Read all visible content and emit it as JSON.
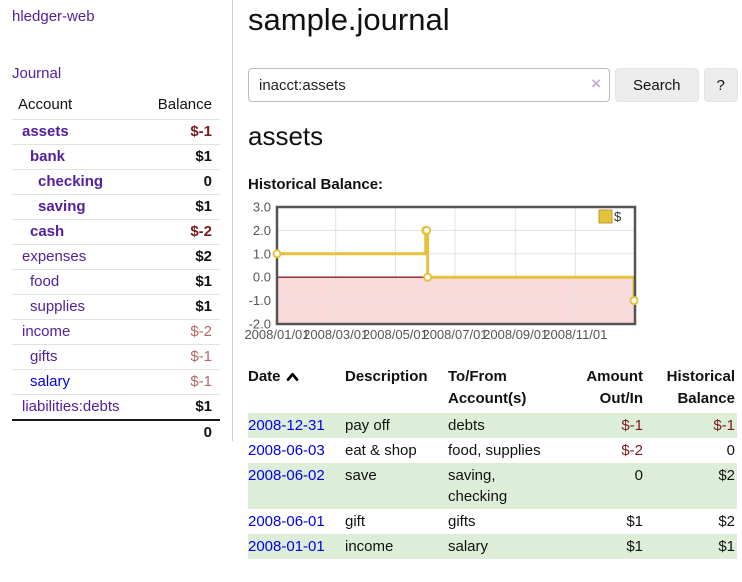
{
  "app": {
    "brand": "hledger-web"
  },
  "sidebar": {
    "journal_label": "Journal",
    "account_header": "Account",
    "balance_header": "Balance",
    "rows": [
      {
        "name": "assets",
        "indent": 0,
        "balance": "$-1",
        "bold": true,
        "neg": "strong"
      },
      {
        "name": "bank",
        "indent": 1,
        "balance": "$1",
        "bold": true
      },
      {
        "name": "checking",
        "indent": 2,
        "balance": "0",
        "bold": true
      },
      {
        "name": "saving",
        "indent": 2,
        "balance": "$1",
        "bold": true
      },
      {
        "name": "cash",
        "indent": 1,
        "balance": "$-2",
        "bold": true,
        "neg": "strong"
      },
      {
        "name": "expenses",
        "indent": 0,
        "balance": "$2"
      },
      {
        "name": "food",
        "indent": 1,
        "balance": "$1"
      },
      {
        "name": "supplies",
        "indent": 1,
        "balance": "$1"
      },
      {
        "name": "income",
        "indent": 0,
        "balance": "$-2",
        "neg": "soft"
      },
      {
        "name": "gifts",
        "indent": 1,
        "balance": "$-1",
        "neg": "soft"
      },
      {
        "name": "salary",
        "indent": 1,
        "balance": "$-1",
        "neg": "soft",
        "blue": true
      },
      {
        "name": "liabilities:debts",
        "indent": 0,
        "balance": "$1"
      }
    ],
    "total": "0"
  },
  "header": {
    "title": "sample.journal"
  },
  "search": {
    "value": "inacct:assets",
    "clear_icon": "×",
    "button_label": "Search",
    "help_label": "?"
  },
  "account_page": {
    "heading": "assets",
    "chart_label": "Historical Balance:"
  },
  "chart_data": {
    "type": "line",
    "step": true,
    "legend_label": "$",
    "legend_position": "top-right",
    "grid": true,
    "ylim": [
      -2,
      3
    ],
    "xlim": [
      "2008-01-01",
      "2009-01-01"
    ],
    "y_ticks": [
      -2,
      -1,
      0,
      1,
      2,
      3
    ],
    "x_ticks": [
      "2008/01/01",
      "2008/03/01",
      "2008/05/01",
      "2008/07/01",
      "2008/09/01",
      "2008/11/01"
    ],
    "series": [
      {
        "name": "$",
        "color": "#e6c23c",
        "points": [
          [
            "2008-01-01",
            1
          ],
          [
            "2008-06-01",
            2
          ],
          [
            "2008-06-02",
            2
          ],
          [
            "2008-06-03",
            0
          ],
          [
            "2008-12-31",
            -1
          ]
        ]
      }
    ],
    "colors": {
      "negative_fill": "#f9dada",
      "zero_line": "#8f1f1f",
      "border": "#545454",
      "grid": "#e3e3e3",
      "tick_text": "#555555",
      "legend_box_border": "#bf9b2f"
    }
  },
  "register": {
    "columns": [
      {
        "l1": "Date",
        "l2": ""
      },
      {
        "l1": "Description",
        "l2": ""
      },
      {
        "l1": "To/From",
        "l2": "Account(s)"
      },
      {
        "l1": "Amount",
        "l2": "Out/In"
      },
      {
        "l1": "Historical",
        "l2": "Balance"
      }
    ],
    "rows": [
      {
        "date": "2008-12-31",
        "description": "pay off",
        "accounts": "debts",
        "amount": "$-1",
        "balance": "$-1",
        "amount_neg": true,
        "balance_neg": true
      },
      {
        "date": "2008-06-03",
        "description": "eat & shop",
        "accounts": "food, supplies",
        "amount": "$-2",
        "balance": "0",
        "amount_neg": true
      },
      {
        "date": "2008-06-02",
        "description": "save",
        "accounts": "saving, checking",
        "amount": "0",
        "balance": "$2"
      },
      {
        "date": "2008-06-01",
        "description": "gift",
        "accounts": "gifts",
        "amount": "$1",
        "balance": "$2"
      },
      {
        "date": "2008-01-01",
        "description": "income",
        "accounts": "salary",
        "amount": "$1",
        "balance": "$1"
      }
    ]
  },
  "colors": {
    "accent_purple": "#54209b",
    "link_blue": "#0000e8",
    "negative_strong": "#7a1a1a",
    "negative_soft": "#b26868",
    "stripe_green": "#ddeed8"
  }
}
